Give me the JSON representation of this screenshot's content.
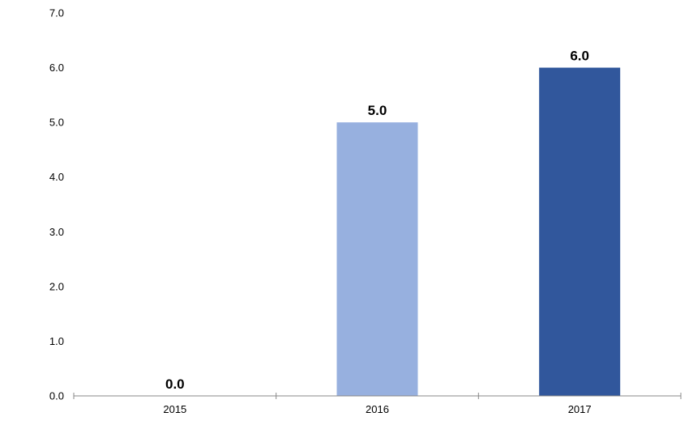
{
  "chart_data": {
    "type": "bar",
    "title": "",
    "xlabel": "",
    "ylabel": "",
    "categories": [
      "2015",
      "2016",
      "2017"
    ],
    "values": [
      0.0,
      5.0,
      6.0
    ],
    "data_labels": [
      "0.0",
      "5.0",
      "6.0"
    ],
    "bar_colors": [
      "#97b0df",
      "#97b0df",
      "#31579c"
    ],
    "ylim": [
      0,
      7
    ],
    "yticks": [
      0,
      1,
      2,
      3,
      4,
      5,
      6,
      7
    ],
    "ytick_labels": [
      "0.0",
      "1.0",
      "2.0",
      "3.0",
      "4.0",
      "5.0",
      "6.0",
      "7.0"
    ],
    "grid": false,
    "legend": "none",
    "axis_color": "#888888"
  }
}
